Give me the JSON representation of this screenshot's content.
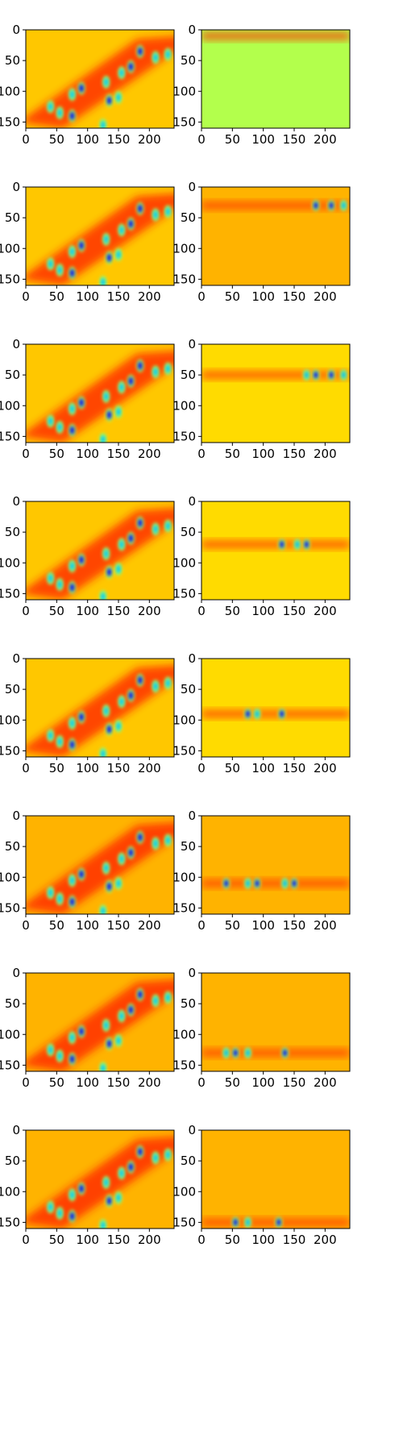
{
  "chart_data": {
    "type": "heatmap",
    "layout": "8 rows x 2 columns of image panels",
    "colormap": "jet",
    "xlim": [
      0,
      240
    ],
    "ylim": [
      160,
      0
    ],
    "xticks": [
      "0",
      "50",
      "100",
      "150",
      "200"
    ],
    "yticks": [
      "0",
      "50",
      "100",
      "150"
    ],
    "grid": "off",
    "legend": "none",
    "panels": [
      {
        "row": 1,
        "col": "left",
        "content": "full frame: diagonal band of blobs",
        "band_y": null,
        "background_value": 0.68
      },
      {
        "row": 1,
        "col": "right",
        "content": "masked strip near top of frame",
        "band_y": 10,
        "background_value": 0.55
      },
      {
        "row": 2,
        "col": "left",
        "content": "full frame: diagonal band of blobs",
        "band_y": null,
        "background_value": 0.68
      },
      {
        "row": 2,
        "col": "right",
        "content": "masked strip",
        "band_y": 30,
        "background_value": 0.7
      },
      {
        "row": 3,
        "col": "left",
        "content": "full frame: diagonal band of blobs",
        "band_y": null,
        "background_value": 0.68
      },
      {
        "row": 3,
        "col": "right",
        "content": "masked strip",
        "band_y": 50,
        "background_value": 0.66
      },
      {
        "row": 4,
        "col": "left",
        "content": "full frame: diagonal band of blobs",
        "band_y": null,
        "background_value": 0.68
      },
      {
        "row": 4,
        "col": "right",
        "content": "masked strip",
        "band_y": 70,
        "background_value": 0.66
      },
      {
        "row": 5,
        "col": "left",
        "content": "full frame: diagonal band of blobs",
        "band_y": null,
        "background_value": 0.68
      },
      {
        "row": 5,
        "col": "right",
        "content": "masked strip",
        "band_y": 90,
        "background_value": 0.66
      },
      {
        "row": 6,
        "col": "left",
        "content": "full frame: diagonal band of blobs",
        "band_y": null,
        "background_value": 0.7
      },
      {
        "row": 6,
        "col": "right",
        "content": "masked strip",
        "band_y": 110,
        "background_value": 0.7
      },
      {
        "row": 7,
        "col": "left",
        "content": "full frame: diagonal band of blobs",
        "band_y": null,
        "background_value": 0.7
      },
      {
        "row": 7,
        "col": "right",
        "content": "masked strip",
        "band_y": 130,
        "background_value": 0.7
      },
      {
        "row": 8,
        "col": "left",
        "content": "full frame: diagonal band of blobs",
        "band_y": null,
        "background_value": 0.7
      },
      {
        "row": 8,
        "col": "right",
        "content": "masked strip near bottom of frame",
        "band_y": 150,
        "background_value": 0.7
      }
    ],
    "blobs": [
      {
        "x": 185,
        "y": 35
      },
      {
        "x": 230,
        "y": 40
      },
      {
        "x": 210,
        "y": 45
      },
      {
        "x": 170,
        "y": 60
      },
      {
        "x": 155,
        "y": 70
      },
      {
        "x": 130,
        "y": 85
      },
      {
        "x": 90,
        "y": 95
      },
      {
        "x": 75,
        "y": 105
      },
      {
        "x": 150,
        "y": 110
      },
      {
        "x": 135,
        "y": 115
      },
      {
        "x": 40,
        "y": 125
      },
      {
        "x": 55,
        "y": 135
      },
      {
        "x": 75,
        "y": 140
      },
      {
        "x": 125,
        "y": 155
      }
    ]
  }
}
